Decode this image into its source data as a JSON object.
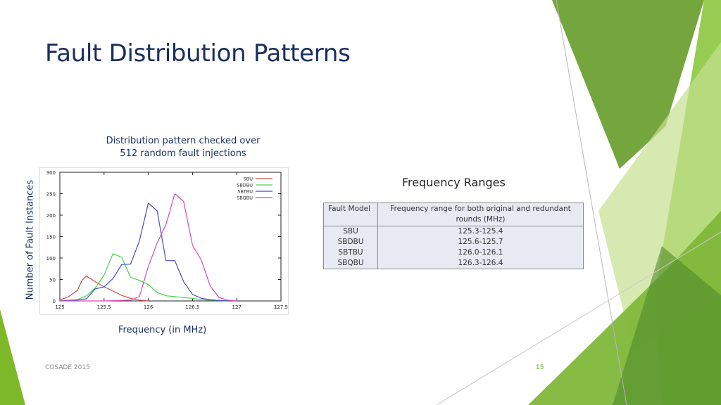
{
  "slide": {
    "title": "Fault Distribution Patterns",
    "caption_line1": "Distribution pattern checked over",
    "caption_line2": "512 random fault injections",
    "ylabel": "Number of Fault Instances",
    "xlabel": "Frequency (in MHz)",
    "footer_left": "COSADE 2015",
    "page_number": "15"
  },
  "chart_data": {
    "type": "line",
    "x_ticks": [
      125,
      125.5,
      126,
      126.5,
      127,
      127.5
    ],
    "y_ticks": [
      0,
      50,
      100,
      150,
      200,
      250,
      300
    ],
    "xlim": [
      125,
      127.5
    ],
    "ylim": [
      0,
      300
    ],
    "legend_position": "top-right",
    "grid": false,
    "series": [
      {
        "name": "SBU",
        "color": "#d24b4b",
        "x": [
          125.0,
          125.1,
          125.2,
          125.25,
          125.3,
          125.4,
          125.5,
          125.6,
          125.7,
          125.8,
          125.9,
          126.0
        ],
        "y": [
          2,
          10,
          25,
          48,
          58,
          45,
          33,
          23,
          13,
          6,
          2,
          0
        ]
      },
      {
        "name": "SBDBU",
        "color": "#4ad24a",
        "x": [
          125.0,
          125.2,
          125.3,
          125.4,
          125.5,
          125.6,
          125.7,
          125.8,
          125.9,
          126.0,
          126.1,
          126.2,
          126.3,
          126.4,
          126.5,
          126.6,
          126.7,
          126.8,
          127.0
        ],
        "y": [
          0,
          3,
          12,
          30,
          60,
          110,
          102,
          55,
          48,
          38,
          20,
          12,
          10,
          8,
          6,
          3,
          2,
          1,
          0
        ]
      },
      {
        "name": "SBTBU",
        "color": "#4848c8",
        "x": [
          125.0,
          125.2,
          125.3,
          125.4,
          125.5,
          125.6,
          125.7,
          125.8,
          125.9,
          126.0,
          126.1,
          126.2,
          126.3,
          126.4,
          126.5,
          126.6,
          126.7,
          126.8,
          126.9,
          127.0
        ],
        "y": [
          0,
          2,
          5,
          28,
          33,
          52,
          85,
          86,
          140,
          228,
          210,
          94,
          94,
          45,
          15,
          6,
          3,
          1,
          0,
          0
        ]
      },
      {
        "name": "SBQBU",
        "color": "#d24bb4",
        "x": [
          125.0,
          125.5,
          125.8,
          125.9,
          126.0,
          126.1,
          126.2,
          126.3,
          126.4,
          126.5,
          126.6,
          126.7,
          126.8,
          126.9,
          127.0
        ],
        "y": [
          0,
          0,
          2,
          10,
          80,
          135,
          178,
          250,
          232,
          130,
          95,
          35,
          8,
          2,
          0
        ]
      }
    ]
  },
  "ranges": {
    "title": "Frequency Ranges",
    "headers": [
      "Fault Model",
      "Frequency range for both original and redundant rounds (MHz)"
    ],
    "rows": [
      [
        "SBU",
        "125.3-125.4"
      ],
      [
        "SBDBU",
        "125.6-125.7"
      ],
      [
        "SBTBU",
        "126.0-126.1"
      ],
      [
        "SBQBU",
        "126.3-126.4"
      ]
    ]
  },
  "colors": {
    "title": "#1a2f5e",
    "accent_green": "#7db828",
    "page_number": "#6aa32d"
  }
}
